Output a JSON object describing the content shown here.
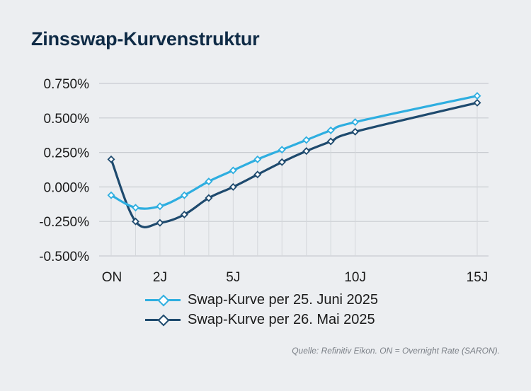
{
  "chart_data": {
    "type": "line",
    "title": "Zinsswap-Kurvenstruktur",
    "xlabel": "",
    "ylabel": "",
    "ylim": [
      -0.5,
      0.75
    ],
    "xlim": [
      0,
      15
    ],
    "y_ticks": [
      0.75,
      0.5,
      0.25,
      0.0,
      -0.25,
      -0.5
    ],
    "y_tick_labels": [
      "0.750%",
      "0.500%",
      "0.250%",
      "0.000%",
      "-0.250%",
      "-0.500%"
    ],
    "x_ticks": [
      {
        "x": 0,
        "label": "ON"
      },
      {
        "x": 2,
        "label": "2J"
      },
      {
        "x": 5,
        "label": "5J"
      },
      {
        "x": 10,
        "label": "10J"
      },
      {
        "x": 15,
        "label": "15J"
      }
    ],
    "x_gridlines": [
      0,
      1,
      2,
      3,
      4,
      5,
      6,
      7,
      8,
      9,
      10,
      15
    ],
    "grid": true,
    "legend_position": "bottom",
    "x": [
      0,
      1,
      2,
      3,
      4,
      5,
      6,
      7,
      8,
      9,
      10,
      15
    ],
    "series": [
      {
        "name": "Swap-Kurve per 25. Juni 2025",
        "color": "#2eaee0",
        "values": [
          -0.06,
          -0.15,
          -0.14,
          -0.06,
          0.04,
          0.12,
          0.2,
          0.27,
          0.34,
          0.41,
          0.47,
          0.66
        ]
      },
      {
        "name": "Swap-Kurve per 26. Mai 2025",
        "color": "#1e4a6e",
        "values": [
          0.2,
          -0.25,
          -0.26,
          -0.2,
          -0.08,
          0.0,
          0.09,
          0.18,
          0.26,
          0.33,
          0.4,
          0.61
        ]
      }
    ]
  },
  "source_note": "Quelle: Refinitiv Eikon. ON = Overnight Rate (SARON)."
}
